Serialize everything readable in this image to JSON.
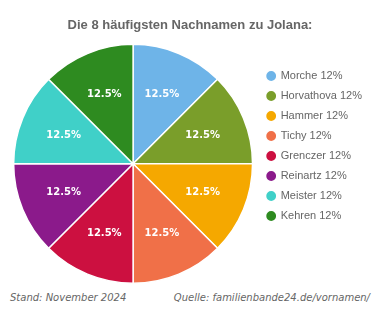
{
  "chart_data": {
    "type": "pie",
    "title": "Die 8 häufigsten Nachnamen zu Jolana:",
    "categories": [
      "Morche 12%",
      "Horvathova 12%",
      "Hammer 12%",
      "Tichy 12%",
      "Grenczer 12%",
      "Reinartz 12%",
      "Meister 12%",
      "Kehren 12%"
    ],
    "values": [
      12.5,
      12.5,
      12.5,
      12.5,
      12.5,
      12.5,
      12.5,
      12.5
    ],
    "value_labels": [
      "12.5%",
      "12.5%",
      "12.5%",
      "12.5%",
      "12.5%",
      "12.5%",
      "12.5%",
      "12.5%"
    ],
    "colors": [
      "#6EB4E8",
      "#7A9E2A",
      "#F5A800",
      "#F07048",
      "#CC1040",
      "#8B1A8B",
      "#40D0C8",
      "#2E8B20"
    ],
    "data_labels": true,
    "legend": "right",
    "annotations": [
      "Stand: November 2024",
      "Quelle: familienbande24.de/vornamen/"
    ]
  }
}
